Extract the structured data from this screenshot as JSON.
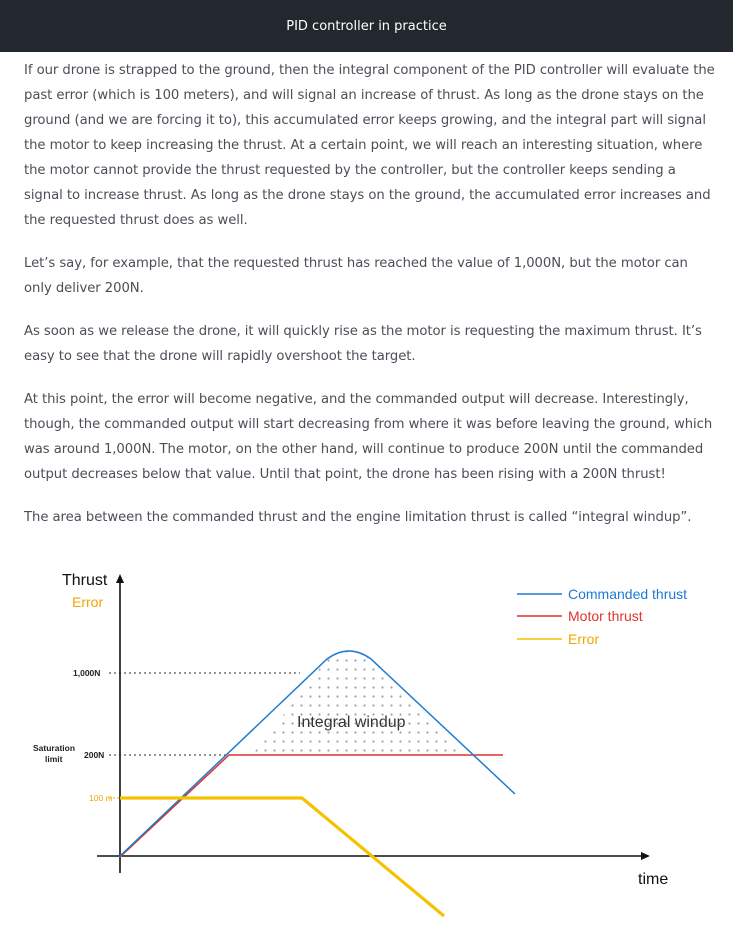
{
  "header": {
    "title": "PID controller in practice"
  },
  "article": {
    "paragraphs": [
      "If our drone is strapped to the ground, then the integral component of the PID controller will evaluate the past error (which is 100 meters), and will signal an increase of thrust. As long as the drone stays on the ground (and we are forcing it to), this accumulated error keeps growing, and the integral part will signal the motor to keep increasing the thrust. At a certain point, we will reach an interesting situation, where the motor cannot provide the thrust requested by the controller, but the controller keeps sending a signal to increase thrust. As long as the drone stays on the ground, the accumulated error increases and the requested thrust does as well.",
      "Let’s say, for example, that the requested thrust has reached the value of 1,000N, but the motor can only deliver 200N.",
      "As soon as we release the drone, it will quickly rise as the motor is requesting the maximum thrust. It’s easy to see that the drone will rapidly overshoot the target.",
      "At this point, the error will become negative, and the commanded output will decrease. Interestingly, though, the commanded output will start decreasing from where it was before leaving the ground, which was around 1,000N. The motor, on the other hand, will continue to produce 200N until the commanded output decreases below that value. Until that point, the drone has been rising with a 200N thrust!",
      "The area between the commanded thrust and the engine limitation thrust is called “integral windup”."
    ]
  },
  "figure": {
    "y_axis_label": "Thrust",
    "y_axis_label_secondary": "Error",
    "x_axis_label": "time",
    "tick_1000": "1,000N",
    "tick_200": "200N",
    "tick_100m": "100 m",
    "saturation_label_line1": "Saturation",
    "saturation_label_line2": "limit",
    "area_label": "Integral windup",
    "legend": [
      {
        "label": "Commanded thrust",
        "color": "#1f7bd0"
      },
      {
        "label": "Motor thrust",
        "color": "#e0342c"
      },
      {
        "label": "Error",
        "color": "#f5c200"
      }
    ],
    "colors": {
      "error_label": "#f0a500",
      "axis": "#111111",
      "dotted": "#555555",
      "dots": "#9aa1aa"
    }
  }
}
